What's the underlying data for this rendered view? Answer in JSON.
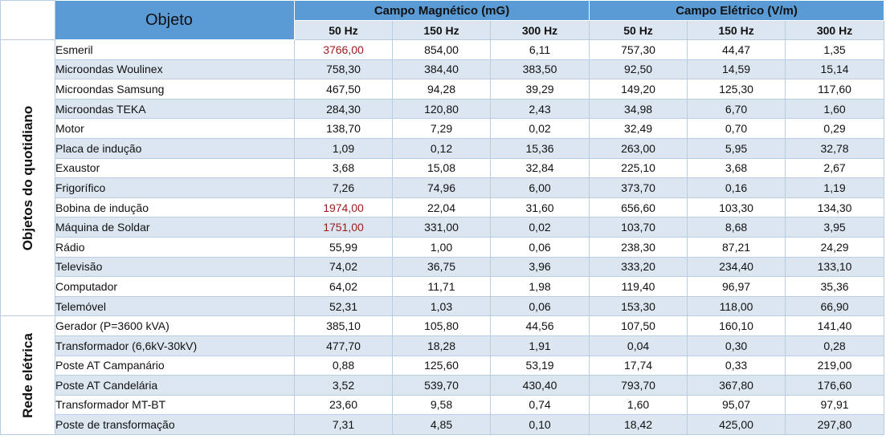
{
  "header": {
    "objeto": "Objeto",
    "magnetic_group": "Campo Magnético (mG)",
    "electric_group": "Campo Elétrico (V/m)",
    "frequencies": [
      "50 Hz",
      "150 Hz",
      "300 Hz",
      "50 Hz",
      "150 Hz",
      "300 Hz"
    ]
  },
  "categories": [
    {
      "label": "Objetos do quotidiano",
      "rows": [
        {
          "name": "Esmeril",
          "values": [
            "3766,00",
            "854,00",
            "6,11",
            "757,30",
            "44,47",
            "1,35"
          ],
          "highlight": [
            true,
            false,
            false,
            false,
            false,
            false
          ]
        },
        {
          "name": "Microondas Woulinex",
          "values": [
            "758,30",
            "384,40",
            "383,50",
            "92,50",
            "14,59",
            "15,14"
          ]
        },
        {
          "name": "Microondas Samsung",
          "values": [
            "467,50",
            "94,28",
            "39,29",
            "149,20",
            "125,30",
            "117,60"
          ]
        },
        {
          "name": "Microondas TEKA",
          "values": [
            "284,30",
            "120,80",
            "2,43",
            "34,98",
            "6,70",
            "1,60"
          ]
        },
        {
          "name": "Motor",
          "values": [
            "138,70",
            "7,29",
            "0,02",
            "32,49",
            "0,70",
            "0,29"
          ]
        },
        {
          "name": "Placa de indução",
          "values": [
            "1,09",
            "0,12",
            "15,36",
            "263,00",
            "5,95",
            "32,78"
          ]
        },
        {
          "name": "Exaustor",
          "values": [
            "3,68",
            "15,08",
            "32,84",
            "225,10",
            "3,68",
            "2,67"
          ]
        },
        {
          "name": "Frigorífico",
          "values": [
            "7,26",
            "74,96",
            "6,00",
            "373,70",
            "0,16",
            "1,19"
          ]
        },
        {
          "name": "Bobina de indução",
          "values": [
            "1974,00",
            "22,04",
            "31,60",
            "656,60",
            "103,30",
            "134,30"
          ],
          "highlight": [
            true,
            false,
            false,
            false,
            false,
            false
          ]
        },
        {
          "name": "Máquina de Soldar",
          "values": [
            "1751,00",
            "331,00",
            "0,02",
            "103,70",
            "8,68",
            "3,95"
          ],
          "highlight": [
            true,
            false,
            false,
            false,
            false,
            false
          ]
        },
        {
          "name": "Rádio",
          "values": [
            "55,99",
            "1,00",
            "0,06",
            "238,30",
            "87,21",
            "24,29"
          ]
        },
        {
          "name": "Televisão",
          "values": [
            "74,02",
            "36,75",
            "3,96",
            "333,20",
            "234,40",
            "133,10"
          ]
        },
        {
          "name": "Computador",
          "values": [
            "64,02",
            "11,71",
            "1,98",
            "119,40",
            "96,97",
            "35,36"
          ]
        },
        {
          "name": "Telemóvel",
          "values": [
            "52,31",
            "1,03",
            "0,06",
            "153,30",
            "118,00",
            "66,90"
          ]
        }
      ]
    },
    {
      "label": "Rede elétrica",
      "rows": [
        {
          "name": "Gerador (P=3600 kVA)",
          "values": [
            "385,10",
            "105,80",
            "44,56",
            "107,50",
            "160,10",
            "141,40"
          ]
        },
        {
          "name": "Transformador (6,6kV-30kV)",
          "values": [
            "477,70",
            "18,28",
            "1,91",
            "0,04",
            "0,30",
            "0,28"
          ]
        },
        {
          "name": "Poste AT Campanário",
          "values": [
            "0,88",
            "125,60",
            "53,19",
            "17,74",
            "0,33",
            "219,00"
          ]
        },
        {
          "name": "Poste AT Candelária",
          "values": [
            "3,52",
            "539,70",
            "430,40",
            "793,70",
            "367,80",
            "176,60"
          ]
        },
        {
          "name": "Transformador MT-BT",
          "values": [
            "23,60",
            "9,58",
            "0,74",
            "1,60",
            "95,07",
            "97,91"
          ]
        },
        {
          "name": "Poste de transformação",
          "values": [
            "7,31",
            "4,85",
            "0,10",
            "18,42",
            "425,00",
            "297,80"
          ]
        }
      ]
    }
  ],
  "colors": {
    "header_blue": "#5b9bd5",
    "light_band": "#dce6f1",
    "highlight_text": "#9c1b1b"
  }
}
